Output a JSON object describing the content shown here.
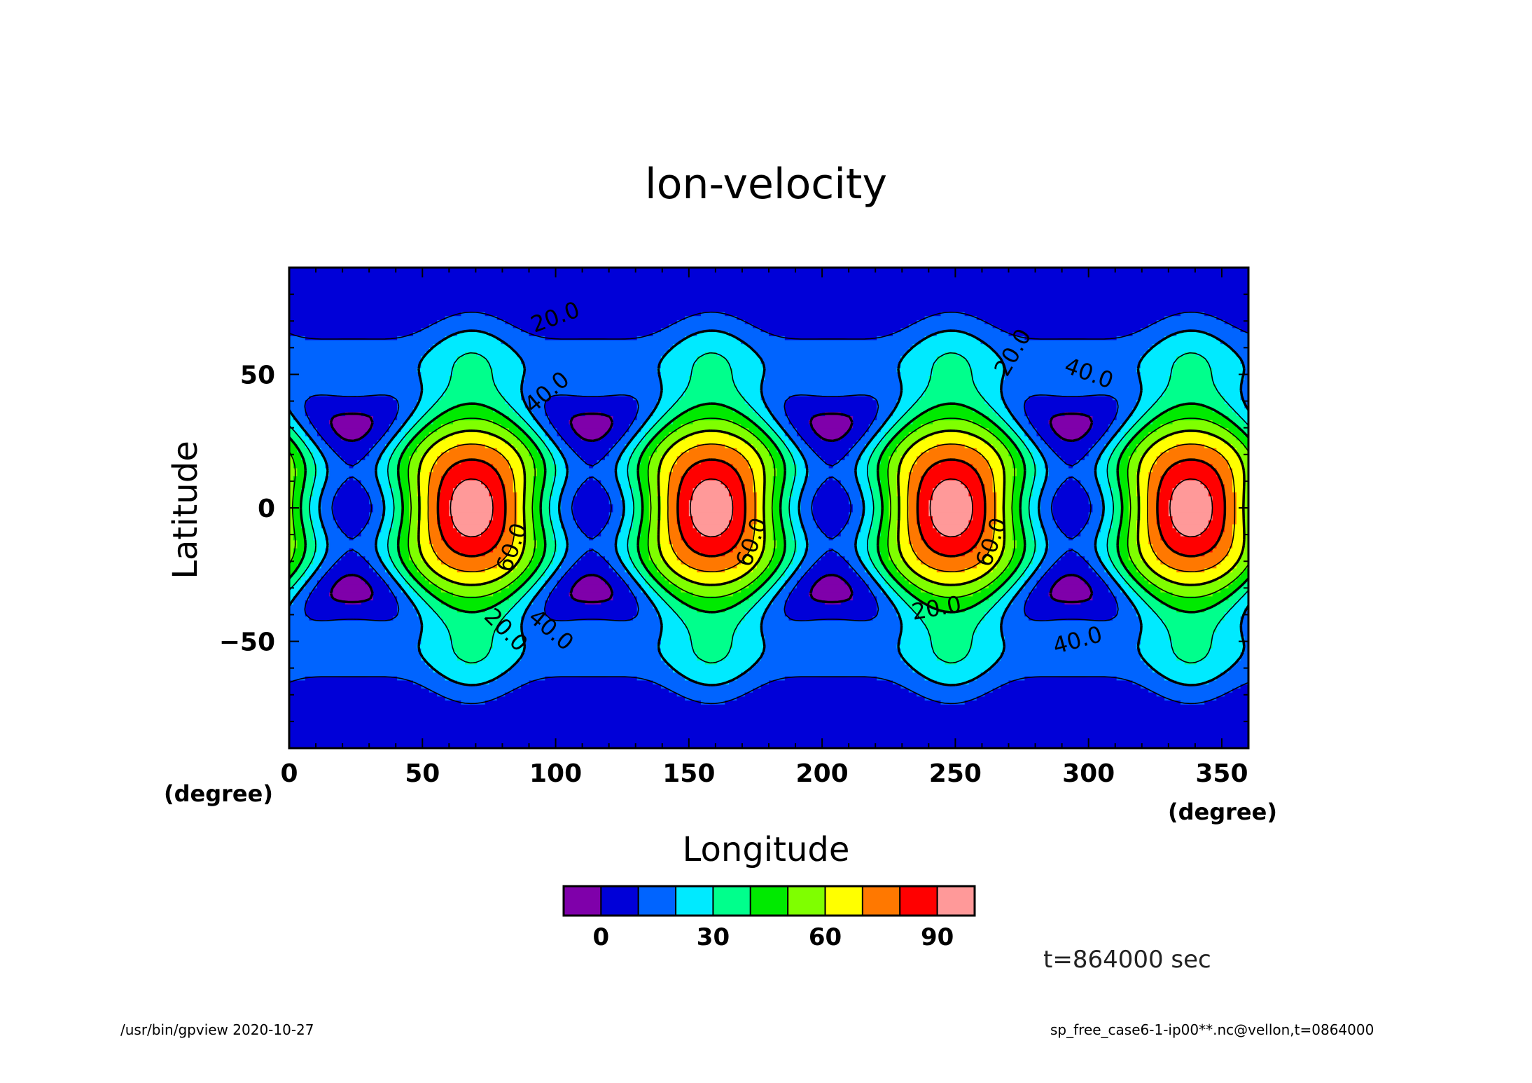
{
  "title": "lon-velocity",
  "time_label": "t=864000 sec",
  "footer": {
    "left": "/usr/bin/gpview   2020-10-27",
    "right": "sp_free_case6-1-ip00**.nc@vellon,t=0864000"
  },
  "chart_data": {
    "type": "heatmap",
    "title": "lon-velocity",
    "xlabel": "Longitude",
    "ylabel": "Latitude",
    "x_unit": "(degree)",
    "y_unit": "(degree)",
    "xlim": [
      0,
      360
    ],
    "ylim": [
      -90,
      90
    ],
    "x_ticks": [
      0,
      50,
      100,
      150,
      200,
      250,
      300,
      350
    ],
    "y_ticks": [
      -50,
      0,
      50
    ],
    "field": {
      "wavenumber": 4,
      "trough_longitudes": [
        23.5,
        113.5,
        203.5,
        293.5
      ],
      "jet_longitudes": [
        68.5,
        158.5,
        248.5,
        338.5
      ],
      "equatorial_trough_value": 4,
      "equatorial_jet_value": 97,
      "highlat_low_latitude": 53,
      "highlat_low_value": -4,
      "ridge_latitude": 40,
      "ridge_value": 63,
      "polar_value": 2
    },
    "contour_levels": [
      0,
      10,
      20,
      30,
      40,
      50,
      60,
      70,
      80,
      90
    ],
    "contour_labels": [
      {
        "text": "20.0",
        "x": 100,
        "y": 71,
        "angle": -20
      },
      {
        "text": "40.0",
        "x": 97,
        "y": 43,
        "angle": -40
      },
      {
        "text": "20.0",
        "x": 272,
        "y": 58,
        "angle": -60
      },
      {
        "text": "40.0",
        "x": 300,
        "y": 50,
        "angle": 20
      },
      {
        "text": "60.0",
        "x": 84,
        "y": -15,
        "angle": -70
      },
      {
        "text": "60.0",
        "x": 174,
        "y": -13,
        "angle": -70
      },
      {
        "text": "60.0",
        "x": 264,
        "y": -13,
        "angle": -70
      },
      {
        "text": "20.0",
        "x": 81,
        "y": -46,
        "angle": 45
      },
      {
        "text": "40.0",
        "x": 98,
        "y": -46,
        "angle": 40
      },
      {
        "text": "20.0",
        "x": 243,
        "y": -38,
        "angle": -10
      },
      {
        "text": "40.0",
        "x": 296,
        "y": -50,
        "angle": -15
      }
    ],
    "colorbar": {
      "colors": [
        "#7f00aa",
        "#0000d8",
        "#0064ff",
        "#00eaff",
        "#00ff8c",
        "#00ea00",
        "#7fff00",
        "#ffff00",
        "#ff7800",
        "#ff0000",
        "#ff9999"
      ],
      "tick_labels": [
        "0",
        "30",
        "60",
        "90"
      ],
      "tick_boundary_index": [
        1,
        4,
        7,
        10
      ]
    }
  }
}
